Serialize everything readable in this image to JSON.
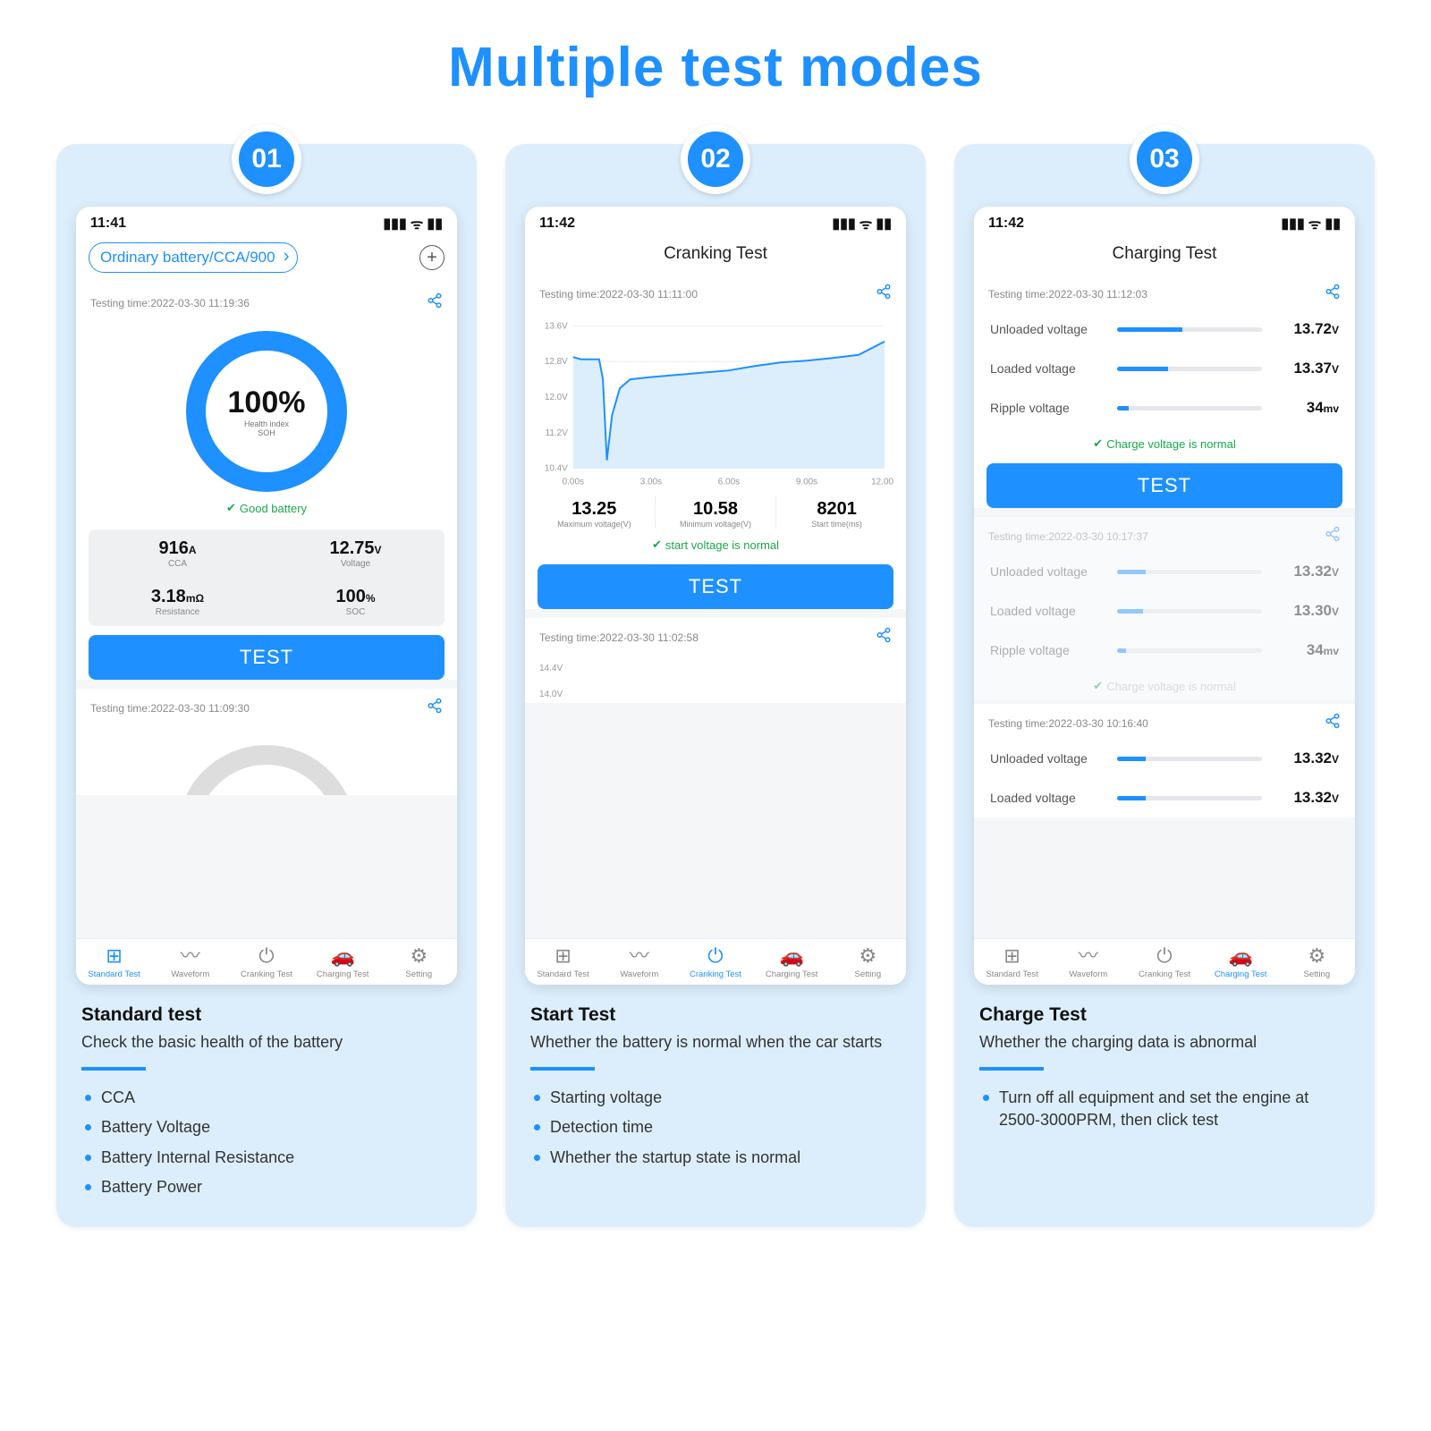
{
  "title": "Multiple test modes",
  "accent": "#1e90ff",
  "columns": [
    {
      "badge": "01",
      "status_time": "11:41",
      "header_type": "chip",
      "chip_text": "Ordinary battery/CCA/900",
      "test_block": {
        "time_line": "Testing time:2022-03-30 11:19:36",
        "ring_pct": "100%",
        "ring_sub": "Health index\nSOH",
        "good_msg": "Good battery",
        "grid": [
          {
            "val": "916",
            "unit": "A",
            "lab": "CCA"
          },
          {
            "val": "12.75",
            "unit": "V",
            "lab": "Voltage"
          },
          {
            "val": "3.18",
            "unit": "mΩ",
            "lab": "Resistance"
          },
          {
            "val": "100",
            "unit": "%",
            "lab": "SOC"
          }
        ],
        "button": "TEST"
      },
      "second_time": "Testing time:2022-03-30 11:09:30",
      "tabs": [
        "Standard Test",
        "Waveform",
        "Cranking Test",
        "Charging Test",
        "Setting"
      ],
      "active_tab": 0,
      "desc_title": "Standard test",
      "desc_text": "Check the basic health of the battery",
      "bullets": [
        "CCA",
        "Battery Voltage",
        "Battery Internal Resistance",
        "Battery Power"
      ]
    },
    {
      "badge": "02",
      "status_time": "11:42",
      "header_type": "title",
      "title_text": "Cranking Test",
      "test_block": {
        "time_line": "Testing time:2022-03-30 11:11:00",
        "chart": {
          "y_ticks": [
            "13.6V",
            "12.8V",
            "12.0V",
            "11.2V",
            "10.4V"
          ],
          "y_values": [
            13.6,
            12.8,
            12.0,
            11.2,
            10.4
          ],
          "x_ticks": [
            "0.00s",
            "3.00s",
            "6.00s",
            "9.00s",
            "12.00s"
          ],
          "x_values": [
            0,
            3,
            6,
            9,
            12
          ],
          "ymin": 10.4,
          "ymax": 13.6,
          "line_color": "#1e90ff",
          "fill_color": "#dceefc",
          "series": [
            [
              0,
              12.9
            ],
            [
              0.3,
              12.85
            ],
            [
              0.6,
              12.85
            ],
            [
              1.0,
              12.85
            ],
            [
              1.15,
              12.4
            ],
            [
              1.3,
              10.58
            ],
            [
              1.5,
              11.6
            ],
            [
              1.8,
              12.2
            ],
            [
              2.2,
              12.4
            ],
            [
              3,
              12.45
            ],
            [
              4,
              12.5
            ],
            [
              5,
              12.55
            ],
            [
              6,
              12.6
            ],
            [
              7,
              12.7
            ],
            [
              8,
              12.78
            ],
            [
              9,
              12.82
            ],
            [
              10,
              12.88
            ],
            [
              11,
              12.95
            ],
            [
              12,
              13.25
            ]
          ]
        },
        "metrics": [
          {
            "val": "13.25",
            "lab": "Maximum voltage(V)"
          },
          {
            "val": "10.58",
            "lab": "Minimum voltage(V)"
          },
          {
            "val": "8201",
            "lab": "Start time(ms)"
          }
        ],
        "normal_msg": "start voltage is normal",
        "button": "TEST"
      },
      "second_time": "Testing time:2022-03-30 11:02:58",
      "tabs": [
        "Standard Test",
        "Waveform",
        "Cranking Test",
        "Charging Test",
        "Setting"
      ],
      "active_tab": 2,
      "desc_title": "Start Test",
      "desc_text": "Whether the battery is normal when the car starts",
      "bullets": [
        "Starting voltage",
        "Detection time",
        "Whether the startup state is normal"
      ]
    },
    {
      "badge": "03",
      "status_time": "11:42",
      "header_type": "title",
      "title_text": "Charging Test",
      "charge_cards": [
        {
          "time_line": "Testing time:2022-03-30 11:12:03",
          "rows": [
            {
              "label": "Unloaded voltage",
              "fill": 0.45,
              "val": "13.72",
              "unit": "V"
            },
            {
              "label": "Loaded voltage",
              "fill": 0.35,
              "val": "13.37",
              "unit": "V"
            },
            {
              "label": "Ripple   voltage",
              "fill": 0.08,
              "val": "34",
              "unit": "mv"
            }
          ],
          "normal_msg": "Charge voltage is normal",
          "button": "TEST"
        },
        {
          "time_line": "Testing time:2022-03-30 10:17:37",
          "rows": [
            {
              "label": "Unloaded voltage",
              "fill": 0.2,
              "val": "13.32",
              "unit": "V"
            },
            {
              "label": "Loaded voltage",
              "fill": 0.18,
              "val": "13.30",
              "unit": "V"
            },
            {
              "label": "Ripple   voltage",
              "fill": 0.06,
              "val": "34",
              "unit": "mv"
            }
          ],
          "normal_msg": "Charge voltage is normal",
          "faded": true
        },
        {
          "time_line": "Testing time:2022-03-30 10:16:40",
          "rows": [
            {
              "label": "Unloaded voltage",
              "fill": 0.2,
              "val": "13.32",
              "unit": "V"
            },
            {
              "label": "Loaded voltage",
              "fill": 0.2,
              "val": "13.32",
              "unit": "V"
            }
          ]
        }
      ],
      "tabs": [
        "Standard Test",
        "Waveform",
        "Cranking Test",
        "Charging Test",
        "Setting"
      ],
      "active_tab": 3,
      "desc_title": "Charge Test",
      "desc_text": "Whether the charging data is abnormal",
      "bullets": [
        "Turn off all equipment and set the engine at 2500-3000PRM, then click test"
      ]
    }
  ],
  "tab_icons": [
    "⊞",
    "〰",
    "⏻",
    "🚗",
    "⚙"
  ]
}
